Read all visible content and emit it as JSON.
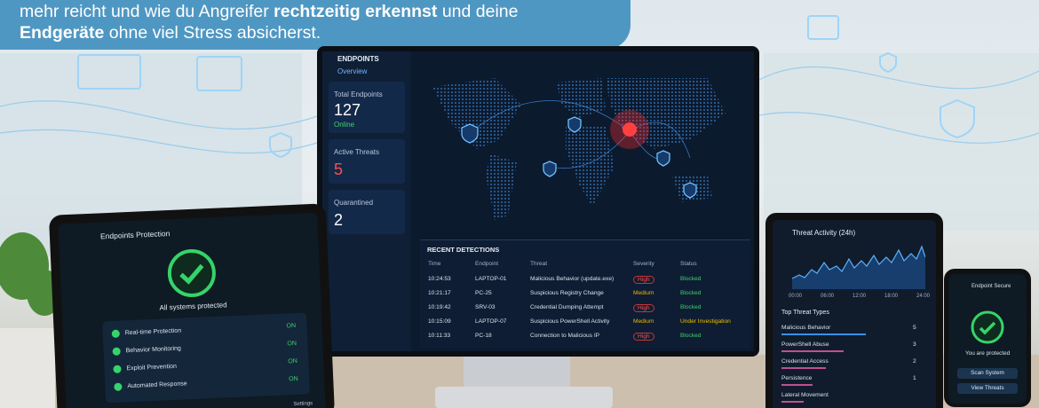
{
  "banner": {
    "line1_start": "mehr reicht und wie du Angreifer",
    "line1_bold": "rechtzeitig erkennst",
    "line1_end": "und deine",
    "line2_bold": "Endgeräte",
    "line2_end": "ohne viel Stress absicherst."
  },
  "monitor": {
    "sidebar": {
      "title": "ENDPOINTS",
      "subtitle": "Overview",
      "cards": [
        {
          "label": "Total Endpoints",
          "value": 127,
          "status": "Online"
        },
        {
          "label": "Active Threats",
          "value": 5
        },
        {
          "label": "Quarantined",
          "value": 2
        }
      ]
    },
    "detections": {
      "title": "RECENT DETECTIONS",
      "columns": [
        "Time",
        "Endpoint",
        "Threat",
        "Severity",
        "Status"
      ],
      "rows": [
        [
          "10:24:53",
          "LAPTOP-01",
          "Malicious Behavior (update.exe)",
          "High",
          "Blocked"
        ],
        [
          "10:21:17",
          "PC-25",
          "Suspicious Registry Change",
          "Medium",
          "Blocked"
        ],
        [
          "10:19:42",
          "SRV-03",
          "Credential Dumping Attempt",
          "High",
          "Blocked"
        ],
        [
          "10:15:09",
          "LAPTOP-07",
          "Suspicious PowerShell Activity",
          "Medium",
          "Under Investigation"
        ],
        [
          "10:11:33",
          "PC-18",
          "Connection to Malicious IP",
          "High",
          "Blocked"
        ]
      ]
    }
  },
  "tablet_left": {
    "title": "Endpoints Protection",
    "status": "All systems protected",
    "items": [
      {
        "label": "Real-time Protection",
        "state": "ON"
      },
      {
        "label": "Behavior Monitoring",
        "state": "ON"
      },
      {
        "label": "Exploit Prevention",
        "state": "ON"
      },
      {
        "label": "Automated Response",
        "state": "ON"
      }
    ],
    "nav_settings": "Settings"
  },
  "tablet_right": {
    "title": "Threat Activity (24h)",
    "x_labels": [
      "00:00",
      "06:00",
      "12:00",
      "18:00",
      "24:00"
    ],
    "top_title": "Top Threat Types",
    "threats": [
      {
        "name": "Malicious Behavior",
        "count": 5
      },
      {
        "name": "PowerShell Abuse",
        "count": 3
      },
      {
        "name": "Credential Access",
        "count": 2
      },
      {
        "name": "Persistence",
        "count": 1
      },
      {
        "name": "Lateral Movement"
      }
    ]
  },
  "phone": {
    "title": "Endpoint Secure",
    "status": "You are protected",
    "buttons": [
      "Scan System",
      "View Threats"
    ]
  }
}
